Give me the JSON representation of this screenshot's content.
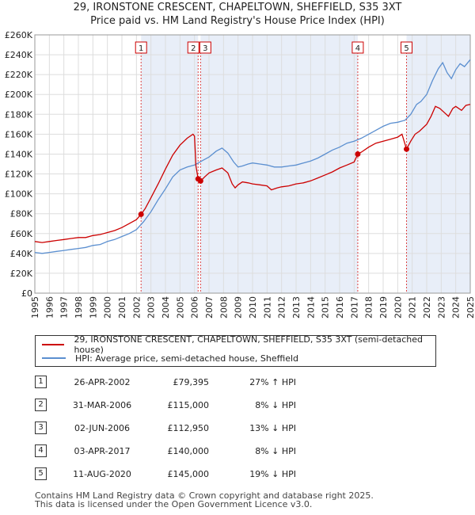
{
  "chart_data": {
    "type": "line",
    "title": "29, IRONSTONE CRESCENT, CHAPELTOWN, SHEFFIELD, S35 3XT",
    "subtitle": "Price paid vs. HM Land Registry's House Price Index (HPI)",
    "xlabel": "",
    "ylabel": "",
    "xlim": [
      1995,
      2025
    ],
    "ylim": [
      0,
      260000
    ],
    "x_ticks": [
      "1995",
      "1996",
      "1997",
      "1998",
      "1999",
      "2000",
      "2001",
      "2002",
      "2003",
      "2004",
      "2005",
      "2006",
      "2007",
      "2008",
      "2009",
      "2010",
      "2011",
      "2012",
      "2013",
      "2014",
      "2015",
      "2016",
      "2017",
      "2018",
      "2019",
      "2020",
      "2021",
      "2022",
      "2023",
      "2024",
      "2025"
    ],
    "y_ticks": [
      {
        "value": 0,
        "label": "£0"
      },
      {
        "value": 20000,
        "label": "£20K"
      },
      {
        "value": 40000,
        "label": "£40K"
      },
      {
        "value": 60000,
        "label": "£60K"
      },
      {
        "value": 80000,
        "label": "£80K"
      },
      {
        "value": 100000,
        "label": "£100K"
      },
      {
        "value": 120000,
        "label": "£120K"
      },
      {
        "value": 140000,
        "label": "£140K"
      },
      {
        "value": 160000,
        "label": "£160K"
      },
      {
        "value": 180000,
        "label": "£180K"
      },
      {
        "value": 200000,
        "label": "£200K"
      },
      {
        "value": 220000,
        "label": "£220K"
      },
      {
        "value": 240000,
        "label": "£240K"
      },
      {
        "value": 260000,
        "label": "£260K"
      }
    ],
    "grid": true,
    "colors": {
      "property": "#cc0000",
      "hpi": "#5b8fd0",
      "shade": "#e8eef8",
      "vline": "#dd4444",
      "grid": "#dddddd"
    },
    "series": [
      {
        "name": "29, IRONSTONE CRESCENT, CHAPELTOWN, SHEFFIELD, S35 3XT (semi-detached house)",
        "x": [
          1995.0,
          1995.5,
          1996.0,
          1996.5,
          1997.0,
          1997.5,
          1998.0,
          1998.5,
          1999.0,
          1999.5,
          2000.0,
          2000.5,
          2001.0,
          2001.5,
          2002.0,
          2002.32,
          2002.6,
          2003.0,
          2003.5,
          2004.0,
          2004.5,
          2005.0,
          2005.5,
          2005.9,
          2006.0,
          2006.1,
          2006.25,
          2006.42,
          2006.7,
          2007.0,
          2007.5,
          2007.9,
          2008.3,
          2008.6,
          2008.8,
          2009.0,
          2009.3,
          2009.7,
          2010.0,
          2010.5,
          2011.0,
          2011.3,
          2011.7,
          2012.0,
          2012.5,
          2013.0,
          2013.5,
          2014.0,
          2014.5,
          2015.0,
          2015.5,
          2016.0,
          2016.5,
          2017.0,
          2017.25,
          2017.5,
          2018.0,
          2018.5,
          2019.0,
          2019.5,
          2020.0,
          2020.3,
          2020.61,
          2020.9,
          2021.2,
          2021.5,
          2022.0,
          2022.3,
          2022.6,
          2022.9,
          2023.2,
          2023.5,
          2023.8,
          2024.0,
          2024.4,
          2024.7,
          2025.0
        ],
        "values": [
          52000,
          51000,
          52000,
          53000,
          54000,
          55000,
          56000,
          56000,
          58000,
          59000,
          61000,
          63000,
          66000,
          70000,
          74000,
          79395,
          85000,
          96000,
          110000,
          125000,
          139000,
          149000,
          156000,
          160000,
          158000,
          128000,
          115000,
          112950,
          117000,
          121000,
          124000,
          126000,
          121000,
          110000,
          106000,
          109000,
          112000,
          111000,
          110000,
          109000,
          108000,
          104000,
          106000,
          107000,
          108000,
          110000,
          111000,
          113000,
          116000,
          119000,
          122000,
          126000,
          129000,
          132000,
          140000,
          142000,
          147000,
          151000,
          153000,
          155000,
          157000,
          160000,
          145000,
          153000,
          160000,
          163000,
          170000,
          178000,
          188000,
          186000,
          182000,
          178000,
          186000,
          188000,
          184000,
          189000,
          190000
        ]
      },
      {
        "name": "HPI: Average price, semi-detached house, Sheffield",
        "x": [
          1995.0,
          1995.5,
          1996.0,
          1996.5,
          1997.0,
          1997.5,
          1998.0,
          1998.5,
          1999.0,
          1999.5,
          2000.0,
          2000.5,
          2001.0,
          2001.5,
          2002.0,
          2002.5,
          2003.0,
          2003.5,
          2004.0,
          2004.5,
          2005.0,
          2005.5,
          2006.0,
          2006.5,
          2007.0,
          2007.5,
          2007.9,
          2008.3,
          2008.7,
          2009.0,
          2009.3,
          2009.7,
          2010.0,
          2010.5,
          2011.0,
          2011.5,
          2012.0,
          2012.5,
          2013.0,
          2013.5,
          2014.0,
          2014.5,
          2015.0,
          2015.5,
          2016.0,
          2016.5,
          2017.0,
          2017.5,
          2018.0,
          2018.5,
          2019.0,
          2019.5,
          2020.0,
          2020.5,
          2020.9,
          2021.3,
          2021.6,
          2022.0,
          2022.4,
          2022.8,
          2023.1,
          2023.4,
          2023.7,
          2024.0,
          2024.3,
          2024.6,
          2025.0
        ],
        "values": [
          41000,
          40000,
          41000,
          42000,
          43000,
          44000,
          45000,
          46000,
          48000,
          49000,
          52000,
          54000,
          57000,
          60000,
          64000,
          72000,
          82000,
          94000,
          105000,
          117000,
          124000,
          127000,
          129000,
          133000,
          137000,
          143000,
          146000,
          141000,
          132000,
          127000,
          128000,
          130000,
          131000,
          130000,
          129000,
          127000,
          127000,
          128000,
          129000,
          131000,
          133000,
          136000,
          140000,
          144000,
          147000,
          151000,
          153000,
          156000,
          160000,
          164000,
          168000,
          171000,
          172000,
          174000,
          180000,
          190000,
          193000,
          200000,
          214000,
          226000,
          232000,
          222000,
          216000,
          225000,
          231000,
          228000,
          235000
        ]
      }
    ],
    "sales": [
      {
        "id": "1",
        "x": 2002.32,
        "value": 79395
      },
      {
        "id": "2",
        "x": 2006.25,
        "value": 115000
      },
      {
        "id": "3",
        "x": 2006.42,
        "value": 112950
      },
      {
        "id": "4",
        "x": 2017.25,
        "value": 140000
      },
      {
        "id": "5",
        "x": 2020.61,
        "value": 145000
      }
    ]
  },
  "legend": {
    "property_label": "29, IRONSTONE CRESCENT, CHAPELTOWN, SHEFFIELD, S35 3XT (semi-detached house)",
    "hpi_label": "HPI: Average price, semi-detached house, Sheffield"
  },
  "transactions": [
    {
      "num": "1",
      "date": "26-APR-2002",
      "price": "£79,395",
      "hpi": "27% ↑ HPI"
    },
    {
      "num": "2",
      "date": "31-MAR-2006",
      "price": "£115,000",
      "hpi": "8% ↓ HPI"
    },
    {
      "num": "3",
      "date": "02-JUN-2006",
      "price": "£112,950",
      "hpi": "13% ↓ HPI"
    },
    {
      "num": "4",
      "date": "03-APR-2017",
      "price": "£140,000",
      "hpi": "8% ↓ HPI"
    },
    {
      "num": "5",
      "date": "11-AUG-2020",
      "price": "£145,000",
      "hpi": "19% ↓ HPI"
    }
  ],
  "footer": {
    "line1": "Contains HM Land Registry data © Crown copyright and database right 2025.",
    "line2": "This data is licensed under the Open Government Licence v3.0."
  }
}
